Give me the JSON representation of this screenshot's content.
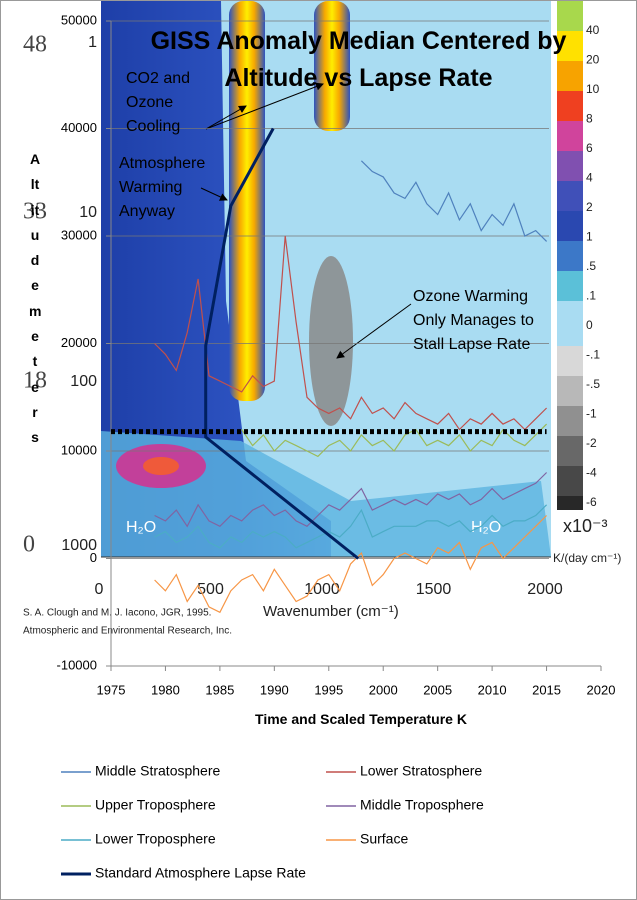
{
  "chart_data": {
    "type": "line",
    "title": "GISS Anomaly Median Centered by Altitude vs Lapse Rate",
    "x_label": "Time and Scaled Temperature K",
    "y_label": "Altitude meters",
    "annotations": [
      "CO2 and Ozone Cooling",
      "Atmosphere Warming Anyway",
      "Ozone Warming Only Manages to Stall Lapse Rate"
    ],
    "xlim": [
      1975,
      2020
    ],
    "xticks": [
      1975,
      1980,
      1985,
      1990,
      1995,
      2000,
      2005,
      2010,
      2015,
      2020
    ],
    "ylim": [
      -10000,
      50000
    ],
    "yticks": [
      -10000,
      0,
      10000,
      20000,
      30000,
      40000,
      50000
    ],
    "grid": true,
    "series": [
      {
        "name": "Middle Stratosphere",
        "color": "#4f81bd",
        "x": [
          1998,
          1999,
          2000,
          2001,
          2002,
          2003,
          2004,
          2005,
          2006,
          2007,
          2008,
          2009,
          2010,
          2011,
          2012,
          2013,
          2014,
          2015
        ],
        "values": [
          37000,
          36000,
          35500,
          34000,
          33500,
          35000,
          33000,
          32000,
          34000,
          31500,
          33000,
          30500,
          32000,
          31000,
          33000,
          30000,
          30500,
          29500
        ]
      },
      {
        "name": "Lower Stratosphere",
        "color": "#c0504d",
        "x": [
          1979,
          1980,
          1981,
          1982,
          1983,
          1984,
          1985,
          1986,
          1987,
          1988,
          1989,
          1990,
          1991,
          1992,
          1993,
          1994,
          1995,
          1996,
          1997,
          1998,
          1999,
          2000,
          2001,
          2002,
          2003,
          2004,
          2005,
          2006,
          2007,
          2008,
          2009,
          2010,
          2011,
          2012,
          2013,
          2014,
          2015
        ],
        "values": [
          20000,
          19000,
          17500,
          21000,
          26000,
          17000,
          16500,
          16000,
          15500,
          17000,
          16000,
          16500,
          30000,
          22000,
          15000,
          14000,
          13500,
          14000,
          13000,
          15000,
          13500,
          14000,
          13000,
          14500,
          13500,
          13000,
          12500,
          13500,
          12000,
          13000,
          12500,
          13500,
          12500,
          13000,
          12000,
          13000,
          14000
        ]
      },
      {
        "name": "Upper Troposphere",
        "color": "#9bbb59",
        "x": [
          1987,
          1988,
          1989,
          1990,
          1991,
          1992,
          1993,
          1994,
          1995,
          1996,
          1997,
          1998,
          1999,
          2000,
          2001,
          2002,
          2003,
          2004,
          2005,
          2006,
          2007,
          2008,
          2009,
          2010,
          2011,
          2012,
          2013,
          2014,
          2015
        ],
        "values": [
          12000,
          10500,
          11500,
          10000,
          11000,
          10500,
          10000,
          9500,
          10500,
          11000,
          10000,
          11500,
          10500,
          11000,
          10000,
          11500,
          12000,
          10500,
          11000,
          10500,
          11500,
          10000,
          11000,
          10500,
          12000,
          11000,
          10500,
          11500,
          12500
        ]
      },
      {
        "name": "Middle Troposphere",
        "color": "#8064a2",
        "x": [
          1979,
          1980,
          1981,
          1982,
          1983,
          1984,
          1985,
          1986,
          1987,
          1988,
          1989,
          1990,
          1991,
          1992,
          1993,
          1994,
          1995,
          1996,
          1997,
          1998,
          1999,
          2000,
          2001,
          2002,
          2003,
          2004,
          2005,
          2006,
          2007,
          2008,
          2009,
          2010,
          2011,
          2012,
          2013,
          2014,
          2015
        ],
        "values": [
          4000,
          3500,
          4500,
          3000,
          5000,
          3500,
          3000,
          4000,
          3500,
          4500,
          5000,
          4000,
          4500,
          3500,
          3000,
          4000,
          5000,
          4500,
          5500,
          6500,
          4500,
          5000,
          5500,
          5000,
          5500,
          5000,
          6000,
          5500,
          6000,
          5000,
          5500,
          6500,
          5500,
          6000,
          6500,
          7000,
          8000
        ]
      },
      {
        "name": "Lower Troposphere",
        "color": "#4bacc6",
        "x": [
          1979,
          1980,
          1981,
          1982,
          1983,
          1984,
          1985,
          1986,
          1987,
          1988,
          1989,
          1990,
          1991,
          1992,
          1993,
          1994,
          1995,
          1996,
          1997,
          1998,
          1999,
          2000,
          2001,
          2002,
          2003,
          2004,
          2005,
          2006,
          2007,
          2008,
          2009,
          2010,
          2011,
          2012,
          2013,
          2014,
          2015
        ],
        "values": [
          2000,
          2500,
          1500,
          2000,
          3000,
          1500,
          1000,
          2000,
          1500,
          2500,
          2000,
          2500,
          2000,
          1000,
          1500,
          2000,
          2500,
          2000,
          3000,
          4500,
          2000,
          2500,
          3000,
          3000,
          3000,
          3500,
          3500,
          3000,
          3500,
          2500,
          3000,
          4000,
          3000,
          3500,
          3500,
          4000,
          5000
        ]
      },
      {
        "name": "Surface",
        "color": "#f79646",
        "x": [
          1979,
          1980,
          1981,
          1982,
          1983,
          1984,
          1985,
          1986,
          1987,
          1988,
          1989,
          1990,
          1991,
          1992,
          1993,
          1994,
          1995,
          1996,
          1997,
          1998,
          1999,
          2000,
          2001,
          2002,
          2003,
          2004,
          2005,
          2006,
          2007,
          2008,
          2009,
          2010,
          2011,
          2012,
          2013,
          2014,
          2015
        ],
        "values": [
          -2000,
          -3000,
          -1500,
          -4000,
          -2500,
          -4500,
          -5000,
          -3000,
          -2000,
          -1500,
          -3000,
          -1000,
          -2500,
          -4000,
          -3500,
          -2000,
          -1500,
          -3000,
          -500,
          500,
          -2500,
          -1500,
          0,
          500,
          0,
          -500,
          1000,
          500,
          1500,
          -1000,
          1000,
          1500,
          0,
          1000,
          2000,
          3000,
          4000
        ]
      },
      {
        "name": "Standard Atmosphere Lapse Rate",
        "color": "#002060",
        "line_width": 3,
        "x": [
          1989.9,
          1986,
          1983.7,
          1983.7,
          1997.7
        ],
        "values": [
          40000,
          32800,
          19800,
          11300,
          0
        ]
      }
    ],
    "hline": {
      "value": 11800,
      "x": [
        1975,
        2015
      ],
      "color": "#000"
    }
  },
  "inset": {
    "colorbar_labels": [
      "40",
      "20",
      "10",
      "8",
      "6",
      "4",
      "2",
      "1",
      ".5",
      ".1",
      "0",
      "-.1",
      "-.5",
      "-1",
      "-2",
      "-4",
      "-6"
    ],
    "colorbar_scale": "x10⁻³",
    "colorbar_unit": "K/(day cm⁻¹)",
    "wavenumber_ticks": [
      "0",
      "500",
      "1000",
      "1500",
      "2000"
    ],
    "wavenumber_label": "Wavenumber (cm⁻¹)",
    "pressure_ticks": [
      "1",
      "10",
      "100",
      "1000"
    ],
    "altitude_ticks": [
      "48",
      "33",
      "18",
      "0"
    ],
    "band_labels": [
      "H₂O",
      "H₂O"
    ],
    "credit": [
      "S. A. Clough and M. J. Iacono, JGR, 1995.",
      "Atmospheric and Environmental Research, Inc."
    ]
  }
}
